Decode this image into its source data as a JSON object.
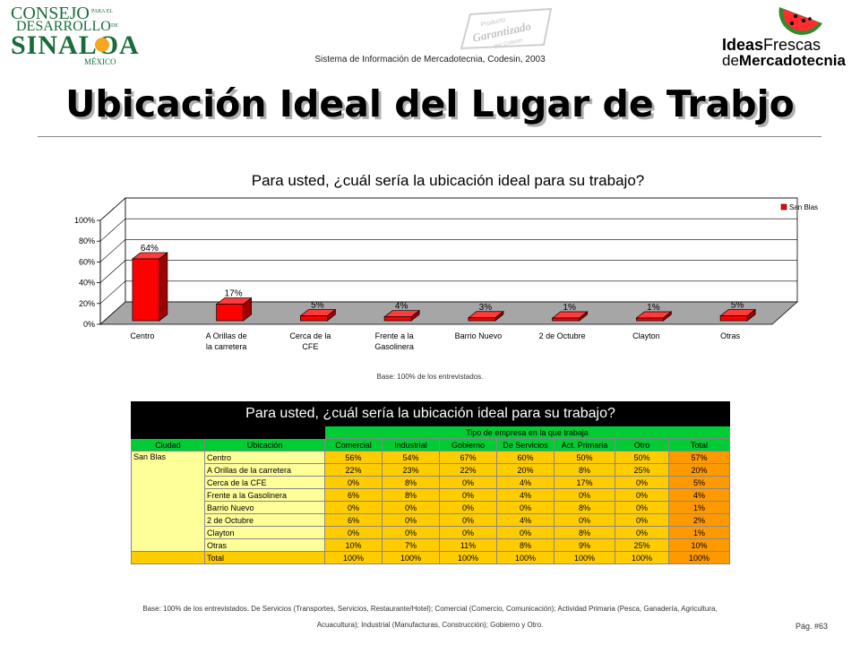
{
  "header": {
    "logo_left": {
      "line1": "CONSEJO",
      "line1b": "PARA EL",
      "line2": "DESARROLLO",
      "line2b": "DE",
      "line3": "SINALOA",
      "line4": "MÉXICO"
    },
    "watermark": {
      "line1": "Producto",
      "line2": "Garantizado",
      "line3": "por Codesin"
    },
    "logo_right": {
      "line1a": "Ideas",
      "line1b": "Frescas",
      "line2a": "de",
      "line2b": "Mercadotecnia"
    },
    "subtitle": "Sistema de Información de Mercadotecnia, Codesin, 2003"
  },
  "slide": {
    "title": "Ubicación Ideal del Lugar de Trabjo",
    "page": "Pág. #63"
  },
  "chart_data": {
    "type": "bar",
    "title": "Para usted, ¿cuál sería la ubicación ideal para su trabajo?",
    "categories": [
      "Centro",
      "A Orillas de la carretera",
      "Cerca de la CFE",
      "Frente a la Gasolinera",
      "Barrio Nuevo",
      "2 de Octubre",
      "Clayton",
      "Otras"
    ],
    "series": [
      {
        "name": "San Blas",
        "values": [
          64,
          17,
          5,
          4,
          3,
          1,
          1,
          5
        ]
      }
    ],
    "data_labels": [
      "64%",
      "17%",
      "5%",
      "4%",
      "3%",
      "1%",
      "1%",
      "5%"
    ],
    "y_ticks": [
      "0%",
      "20%",
      "40%",
      "60%",
      "80%",
      "100%"
    ],
    "ylim": [
      0,
      100
    ],
    "legend_position": "right",
    "bar_color": "#ff0000",
    "base_note": "Base: 100% de los entrevistados."
  },
  "table": {
    "title": "Para usted, ¿cuál sería la ubicación ideal para su trabajo?",
    "group_header": "Tipo de empresa en la que trabaja",
    "columns": [
      "Ciudad",
      "Ubicación",
      "Comercial",
      "Industrial",
      "Gobierno",
      "De Servicios",
      "Act. Primaria",
      "Otro",
      "Total"
    ],
    "city": "San Blas",
    "rows": [
      {
        "label": "Centro",
        "values": [
          "56%",
          "54%",
          "67%",
          "60%",
          "50%",
          "50%"
        ],
        "total": "57%"
      },
      {
        "label": "A Orillas de la carretera",
        "values": [
          "22%",
          "23%",
          "22%",
          "20%",
          "8%",
          "25%"
        ],
        "total": "20%"
      },
      {
        "label": "Cerca de la CFE",
        "values": [
          "0%",
          "8%",
          "0%",
          "4%",
          "17%",
          "0%"
        ],
        "total": "5%"
      },
      {
        "label": "Frente a la Gasolinera",
        "values": [
          "6%",
          "8%",
          "0%",
          "4%",
          "0%",
          "0%"
        ],
        "total": "4%"
      },
      {
        "label": "Barrio Nuevo",
        "values": [
          "0%",
          "0%",
          "0%",
          "0%",
          "8%",
          "0%"
        ],
        "total": "1%"
      },
      {
        "label": "2 de Octubre",
        "values": [
          "6%",
          "0%",
          "0%",
          "4%",
          "0%",
          "0%"
        ],
        "total": "2%"
      },
      {
        "label": "Clayton",
        "values": [
          "0%",
          "0%",
          "0%",
          "0%",
          "8%",
          "0%"
        ],
        "total": "1%"
      },
      {
        "label": "Otras",
        "values": [
          "10%",
          "7%",
          "11%",
          "8%",
          "9%",
          "25%"
        ],
        "total": "10%"
      },
      {
        "label": "Total",
        "values": [
          "100%",
          "100%",
          "100%",
          "100%",
          "100%",
          "100%"
        ],
        "total": "100%"
      }
    ],
    "footnote_line1": "Base: 100% de los entrevistados. De Servicios (Transportes, Servicios, Restaurante/Hotel); Comercial (Comercio, Comunicación); Actividad Primaria (Pesca, Ganadería, Agricultura,",
    "footnote_line2": "Acuacultura); Industrial (Manufacturas, Construcción); Gobierno y Otro."
  }
}
